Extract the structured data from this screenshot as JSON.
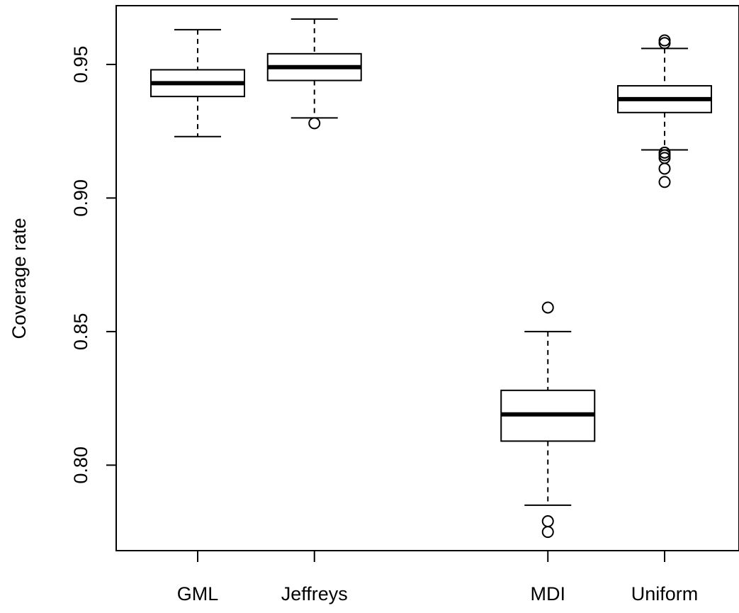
{
  "chart_data": {
    "type": "boxplot",
    "title": "",
    "xlabel": "",
    "ylabel": "Coverage rate",
    "ylim": [
      0.768,
      0.972
    ],
    "y_ticks": [
      "0.80",
      "0.85",
      "0.90",
      "0.95"
    ],
    "y_tick_values": [
      0.8,
      0.85,
      0.9,
      0.95
    ],
    "categories": [
      "GML",
      "Jeffreys",
      "",
      "MDI",
      "Uniform"
    ],
    "grid": false,
    "legend": "none",
    "boxes": [
      {
        "name": "GML",
        "position": 1,
        "whisker_low": 0.923,
        "q1": 0.938,
        "median": 0.943,
        "q3": 0.948,
        "whisker_high": 0.963,
        "outliers": []
      },
      {
        "name": "Jeffreys",
        "position": 2,
        "whisker_low": 0.93,
        "q1": 0.944,
        "median": 0.949,
        "q3": 0.954,
        "whisker_high": 0.967,
        "outliers": [
          0.928
        ]
      },
      {
        "name": "MDI",
        "position": 4,
        "whisker_low": 0.785,
        "q1": 0.809,
        "median": 0.819,
        "q3": 0.828,
        "whisker_high": 0.85,
        "outliers": [
          0.859,
          0.779,
          0.775
        ]
      },
      {
        "name": "Uniform",
        "position": 5,
        "whisker_low": 0.918,
        "q1": 0.932,
        "median": 0.937,
        "q3": 0.942,
        "whisker_high": 0.956,
        "outliers": [
          0.959,
          0.958,
          0.917,
          0.916,
          0.915,
          0.911,
          0.906
        ]
      }
    ],
    "colors": {
      "stroke": "#000000",
      "fill": "#ffffff"
    }
  }
}
